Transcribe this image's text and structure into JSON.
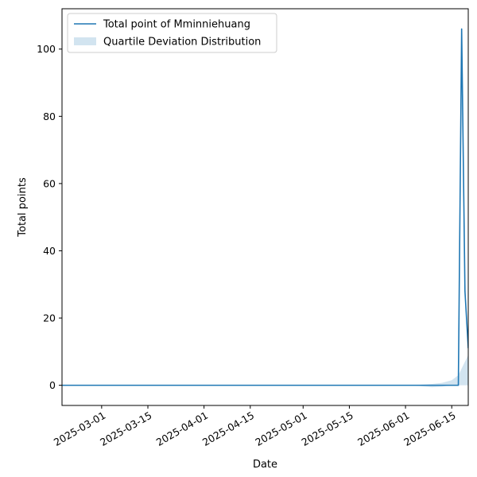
{
  "chart_data": {
    "type": "line",
    "xlabel": "Date",
    "ylabel": "Total points",
    "xlim": [
      "2025-02-17",
      "2025-06-20"
    ],
    "ylim": [
      -6,
      112
    ],
    "x_ticks": [
      "2025-03-01",
      "2025-03-15",
      "2025-04-01",
      "2025-04-15",
      "2025-05-01",
      "2025-05-15",
      "2025-06-01",
      "2025-06-15"
    ],
    "y_ticks": [
      0,
      20,
      40,
      60,
      80,
      100
    ],
    "grid": false,
    "legend_position": "upper left",
    "series": [
      {
        "name": "Total point of Mminniehuang",
        "kind": "line",
        "color": "#1f77b4",
        "x": [
          "2025-02-17",
          "2025-06-17",
          "2025-06-18",
          "2025-06-19",
          "2025-06-20"
        ],
        "y": [
          0,
          0,
          106,
          28,
          11
        ]
      },
      {
        "name": "Quartile Deviation Distribution",
        "kind": "band",
        "color": "#1f77b4",
        "x": [
          "2025-02-17",
          "2025-06-03",
          "2025-06-06",
          "2025-06-09",
          "2025-06-12",
          "2025-06-15",
          "2025-06-17",
          "2025-06-18",
          "2025-06-19",
          "2025-06-20"
        ],
        "lower": [
          0,
          0,
          -0.3,
          -0.6,
          -0.4,
          0,
          0,
          0,
          0,
          0
        ],
        "upper": [
          0,
          0,
          0.2,
          0.4,
          0.7,
          1.5,
          3,
          5,
          7,
          9
        ]
      }
    ]
  }
}
